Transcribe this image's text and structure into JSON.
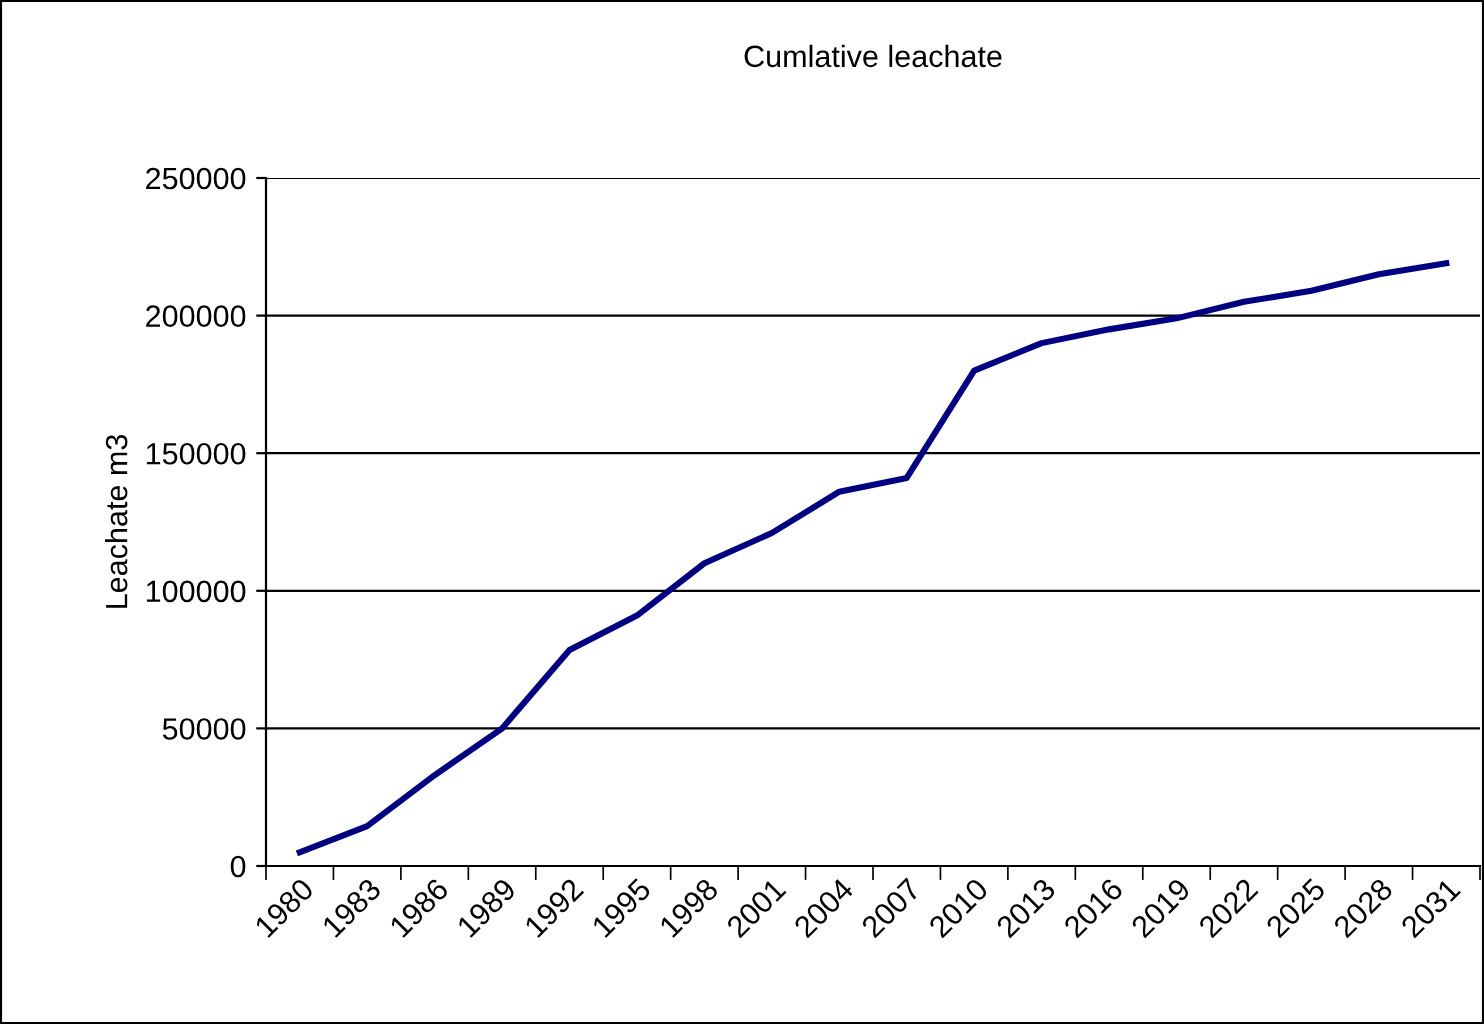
{
  "chart_data": {
    "type": "line",
    "title": "Cumlative leachate",
    "ylabel": "Leachate m3",
    "categories": [
      "1980",
      "1983",
      "1986",
      "1989",
      "1992",
      "1995",
      "1998",
      "2001",
      "2004",
      "2007",
      "2010",
      "2013",
      "2016",
      "2019",
      "2022",
      "2025",
      "2028",
      "2031"
    ],
    "series": [
      {
        "color": "#000080",
        "values": [
          5000,
          14500,
          33000,
          50000,
          78500,
          91000,
          110000,
          121000,
          136000,
          141000,
          180000,
          190000,
          195000,
          199000,
          205000,
          209000,
          215000,
          219000
        ]
      }
    ],
    "ylim": [
      0,
      250000
    ],
    "yticks": [
      0,
      50000,
      100000,
      150000,
      200000,
      250000
    ],
    "grid": "y",
    "legend": false,
    "marker": "none",
    "line_style": "solid"
  }
}
